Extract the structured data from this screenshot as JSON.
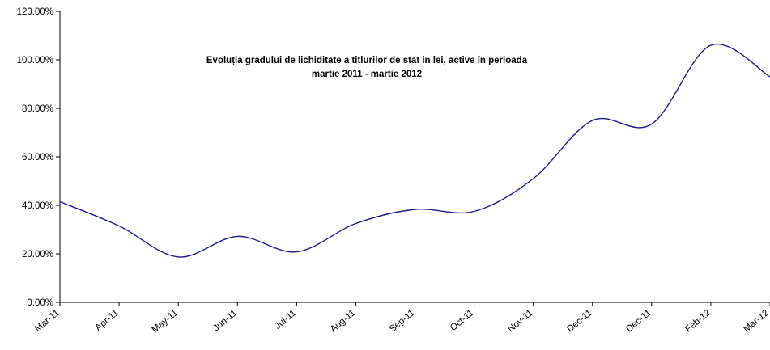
{
  "chart_data": {
    "type": "line",
    "title_lines": [
      "Evoluția gradului de lichiditate a titlurilor de stat in lei, active în perioada",
      "martie  2011 - martie  2012"
    ],
    "xlabel": "",
    "ylabel": "",
    "categories": [
      "Mar-11",
      "Apr-11",
      "May-11",
      "Jun-11",
      "Jul-11",
      "Aug-11",
      "Sep-11",
      "Oct-11",
      "Nov-11",
      "Dec-11",
      "Dec-11",
      "Feb-12",
      "Mar-12"
    ],
    "y_ticks": [
      "0.00%",
      "20.00%",
      "40.00%",
      "60.00%",
      "80.00%",
      "100.00%",
      "120.00%"
    ],
    "ylim": [
      0,
      120
    ],
    "grid": false,
    "legend": "none",
    "series": [
      {
        "color": "#1a1a80",
        "values": [
          41.5,
          31.5,
          18.7,
          27.2,
          20.8,
          32.5,
          38.3,
          37.5,
          51.0,
          75.0,
          73.5,
          106.0,
          93.0
        ]
      }
    ]
  }
}
